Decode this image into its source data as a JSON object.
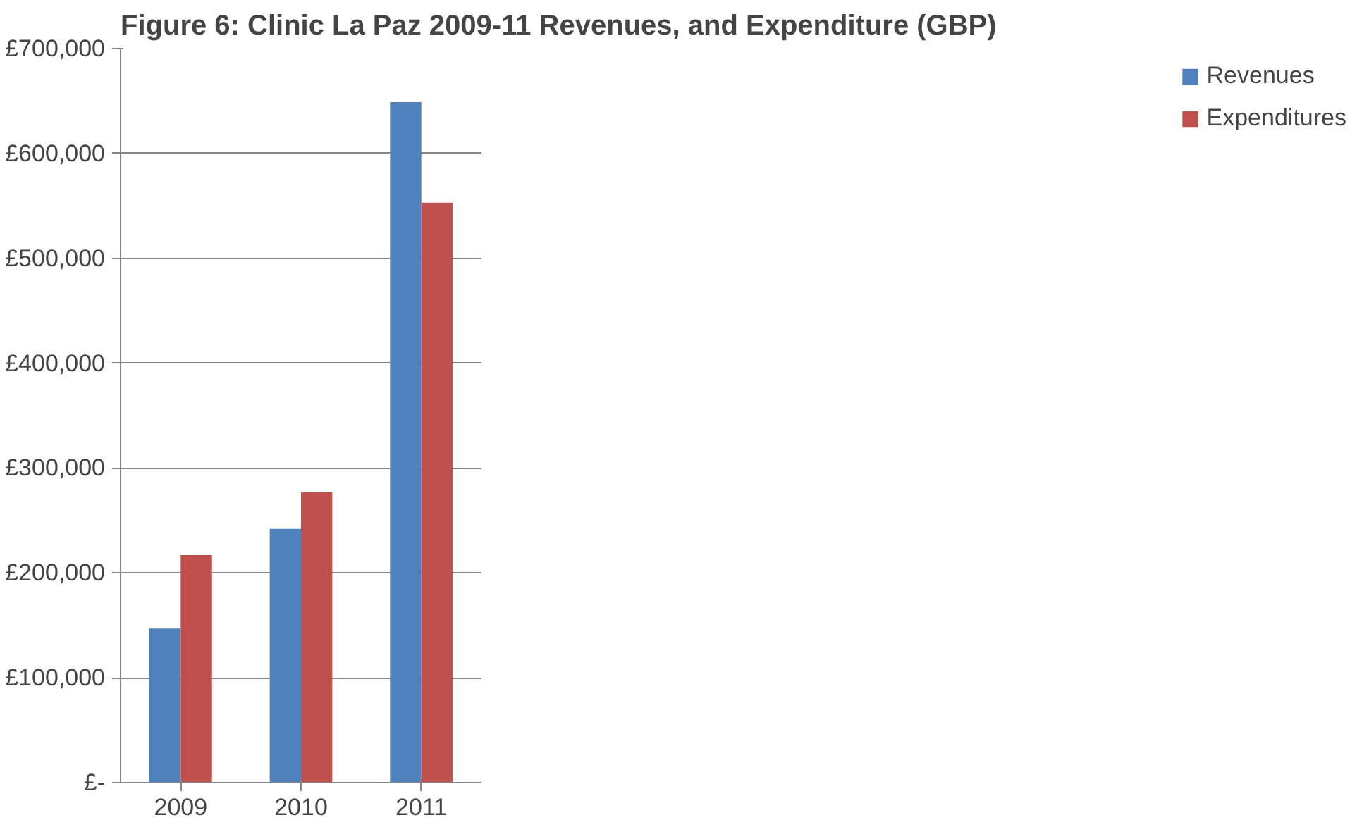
{
  "chart_data": {
    "type": "bar",
    "title": "Figure 6: Clinic La Paz 2009-11 Revenues, and Expenditure (GBP)",
    "categories": [
      "2009",
      "2010",
      "2011"
    ],
    "series": [
      {
        "name": "Revenues",
        "color": "#4f81bd",
        "values": [
          147000,
          242000,
          649000
        ]
      },
      {
        "name": "Expenditures",
        "color": "#c0504d",
        "values": [
          217000,
          277000,
          553000
        ]
      }
    ],
    "ylim": [
      0,
      700000
    ],
    "yticks": [
      {
        "value": 0,
        "label": "£-"
      },
      {
        "value": 100000,
        "label": "£100,000"
      },
      {
        "value": 200000,
        "label": "£200,000"
      },
      {
        "value": 300000,
        "label": "£300,000"
      },
      {
        "value": 400000,
        "label": "£400,000"
      },
      {
        "value": 500000,
        "label": "£500,000"
      },
      {
        "value": 600000,
        "label": "£600,000"
      },
      {
        "value": 700000,
        "label": "£700,000"
      }
    ],
    "grid": "y",
    "legend": "right"
  }
}
